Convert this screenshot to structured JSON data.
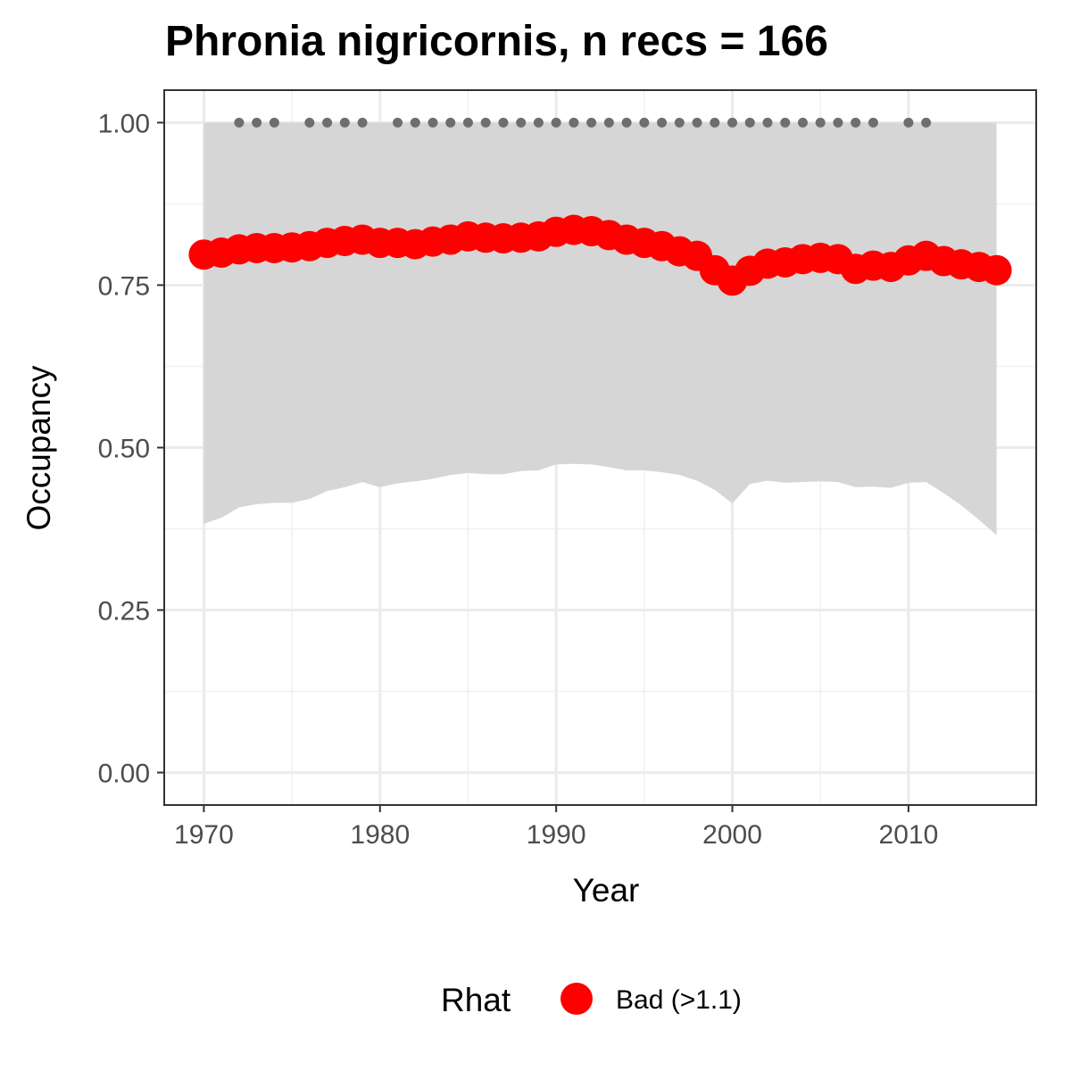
{
  "chart_data": {
    "type": "line",
    "title": "Phronia nigricornis, n recs = 166",
    "xlabel": "Year",
    "ylabel": "Occupancy",
    "xlim": [
      1967.75,
      2017.25
    ],
    "ylim": [
      -0.05,
      1.05
    ],
    "x_ticks": [
      1970,
      1980,
      1990,
      2000,
      2010
    ],
    "y_ticks": [
      0.0,
      0.25,
      0.5,
      0.75,
      1.0
    ],
    "y_tick_labels": [
      "0.00",
      "0.25",
      "0.50",
      "0.75",
      "1.00"
    ],
    "grid": true,
    "legend": {
      "position": "bottom",
      "title": "Rhat",
      "entries": [
        {
          "label": "Bad (>1.1)",
          "color": "#ff0000"
        }
      ]
    },
    "colors": {
      "series": "#ff0000",
      "ribbon": "#d6d6d6",
      "records": "#6e6e6e"
    },
    "series": [
      {
        "name": "Bad (>1.1)",
        "x": [
          1970,
          1971,
          1972,
          1973,
          1974,
          1975,
          1976,
          1977,
          1978,
          1979,
          1980,
          1981,
          1982,
          1983,
          1984,
          1985,
          1986,
          1987,
          1988,
          1989,
          1990,
          1991,
          1992,
          1993,
          1994,
          1995,
          1996,
          1997,
          1998,
          1999,
          2000,
          2001,
          2002,
          2003,
          2004,
          2005,
          2006,
          2007,
          2008,
          2009,
          2010,
          2011,
          2012,
          2013,
          2014,
          2015
        ],
        "y": [
          0.797,
          0.8,
          0.805,
          0.807,
          0.807,
          0.808,
          0.81,
          0.815,
          0.818,
          0.82,
          0.815,
          0.815,
          0.813,
          0.817,
          0.82,
          0.825,
          0.823,
          0.822,
          0.823,
          0.825,
          0.832,
          0.835,
          0.833,
          0.827,
          0.82,
          0.815,
          0.81,
          0.802,
          0.795,
          0.773,
          0.757,
          0.772,
          0.783,
          0.785,
          0.79,
          0.792,
          0.79,
          0.775,
          0.78,
          0.778,
          0.788,
          0.795,
          0.787,
          0.782,
          0.778,
          0.773
        ]
      }
    ],
    "ribbon": {
      "x": [
        1970,
        1971,
        1972,
        1973,
        1974,
        1975,
        1976,
        1977,
        1978,
        1979,
        1980,
        1981,
        1982,
        1983,
        1984,
        1985,
        1986,
        1987,
        1988,
        1989,
        1990,
        1991,
        1992,
        1993,
        1994,
        1995,
        1996,
        1997,
        1998,
        1999,
        2000,
        2001,
        2002,
        2003,
        2004,
        2005,
        2006,
        2007,
        2008,
        2009,
        2010,
        2011,
        2012,
        2013,
        2014,
        2015
      ],
      "lower": [
        0.383,
        0.392,
        0.408,
        0.413,
        0.415,
        0.415,
        0.421,
        0.433,
        0.439,
        0.447,
        0.439,
        0.445,
        0.448,
        0.452,
        0.458,
        0.461,
        0.459,
        0.459,
        0.464,
        0.465,
        0.474,
        0.475,
        0.474,
        0.47,
        0.465,
        0.465,
        0.462,
        0.458,
        0.449,
        0.435,
        0.414,
        0.444,
        0.449,
        0.446,
        0.447,
        0.448,
        0.447,
        0.439,
        0.44,
        0.438,
        0.446,
        0.447,
        0.43,
        0.411,
        0.389,
        0.365
      ],
      "upper": [
        1,
        1,
        1,
        1,
        1,
        1,
        1,
        1,
        1,
        1,
        1,
        1,
        1,
        1,
        1,
        1,
        1,
        1,
        1,
        1,
        1,
        1,
        1,
        1,
        1,
        1,
        1,
        1,
        1,
        1,
        1,
        1,
        1,
        1,
        1,
        1,
        1,
        1,
        1,
        1,
        1,
        1,
        1,
        1,
        1,
        1
      ]
    },
    "record_years": [
      1972,
      1973,
      1974,
      1976,
      1977,
      1978,
      1979,
      1981,
      1982,
      1983,
      1984,
      1985,
      1986,
      1987,
      1988,
      1989,
      1990,
      1991,
      1992,
      1993,
      1994,
      1995,
      1996,
      1997,
      1998,
      1999,
      2000,
      2001,
      2002,
      2003,
      2004,
      2005,
      2006,
      2007,
      2008,
      2010,
      2011
    ],
    "record_y": 1.0
  }
}
